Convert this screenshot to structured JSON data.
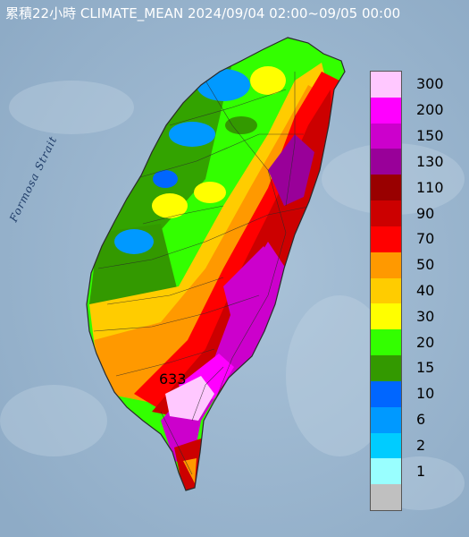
{
  "title": "累積22小時 CLIMATE_MEAN 2024/09/04 02:00~09/05 00:00",
  "strait_label": "Formosa Strait",
  "max_value_label": "633",
  "legend": [
    {
      "label": "300",
      "color": "#ffc8ff"
    },
    {
      "label": "200",
      "color": "#ff00ff"
    },
    {
      "label": "150",
      "color": "#cc00cc"
    },
    {
      "label": "130",
      "color": "#990099"
    },
    {
      "label": "110",
      "color": "#990000"
    },
    {
      "label": "90",
      "color": "#cc0000"
    },
    {
      "label": "70",
      "color": "#ff0000"
    },
    {
      "label": "50",
      "color": "#ff9900"
    },
    {
      "label": "40",
      "color": "#ffcc00"
    },
    {
      "label": "30",
      "color": "#ffff00"
    },
    {
      "label": "20",
      "color": "#33ff00"
    },
    {
      "label": "15",
      "color": "#339900"
    },
    {
      "label": "10",
      "color": "#0066ff"
    },
    {
      "label": "6",
      "color": "#0099ff"
    },
    {
      "label": "2",
      "color": "#00ccff"
    },
    {
      "label": "1",
      "color": "#99ffff"
    },
    {
      "label": "",
      "color": "#c0c0c0"
    }
  ],
  "colors": {
    "sea": "#9fb8cf",
    "sea_texture": "#b7cbdd",
    "boundary": "#2a2a2a"
  }
}
